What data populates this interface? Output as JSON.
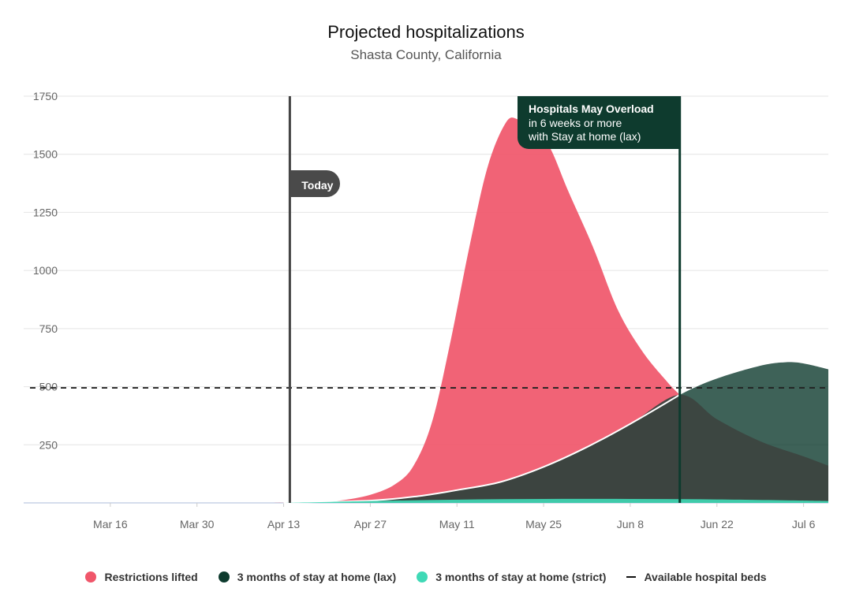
{
  "title": "Projected hospitalizations",
  "subtitle": "Shasta County, California",
  "chart_data": {
    "type": "area",
    "title": "Projected hospitalizations",
    "subtitle": "Shasta County, California",
    "xlabel": "",
    "ylabel": "",
    "x_tick_labels": [
      "Mar 16",
      "Mar 30",
      "Apr 13",
      "Apr 27",
      "May 11",
      "May 25",
      "Jun 8",
      "Jun 22",
      "Jul 6"
    ],
    "x_tick_dates": [
      "2020-03-16",
      "2020-03-30",
      "2020-04-13",
      "2020-04-27",
      "2020-05-11",
      "2020-05-25",
      "2020-06-08",
      "2020-06-22",
      "2020-07-06"
    ],
    "y_ticks": [
      250,
      500,
      750,
      1000,
      1250,
      1500,
      1750
    ],
    "ylim": [
      0,
      1750
    ],
    "xlim": [
      "2020-03-02",
      "2020-07-10"
    ],
    "grid": true,
    "legend_position": "bottom",
    "series": [
      {
        "name": "Restrictions lifted",
        "color": "#f0566a",
        "points": [
          [
            "2020-04-10",
            0
          ],
          [
            "2020-04-17",
            2
          ],
          [
            "2020-04-22",
            10
          ],
          [
            "2020-04-27",
            35
          ],
          [
            "2020-05-01",
            80
          ],
          [
            "2020-05-04",
            160
          ],
          [
            "2020-05-07",
            350
          ],
          [
            "2020-05-10",
            700
          ],
          [
            "2020-05-13",
            1100
          ],
          [
            "2020-05-16",
            1450
          ],
          [
            "2020-05-19",
            1640
          ],
          [
            "2020-05-21",
            1650
          ],
          [
            "2020-05-23",
            1640
          ],
          [
            "2020-05-26",
            1530
          ],
          [
            "2020-05-29",
            1340
          ],
          [
            "2020-06-02",
            1100
          ],
          [
            "2020-06-06",
            830
          ],
          [
            "2020-06-10",
            650
          ],
          [
            "2020-06-14",
            520
          ],
          [
            "2020-06-16",
            465
          ]
        ]
      },
      {
        "name": "3 months of stay at home (lax)",
        "color": "#0e3b2e",
        "points": [
          [
            "2020-04-13",
            0
          ],
          [
            "2020-04-27",
            10
          ],
          [
            "2020-05-05",
            30
          ],
          [
            "2020-05-11",
            55
          ],
          [
            "2020-05-18",
            90
          ],
          [
            "2020-05-25",
            155
          ],
          [
            "2020-06-01",
            240
          ],
          [
            "2020-06-08",
            340
          ],
          [
            "2020-06-16",
            465
          ],
          [
            "2020-06-22",
            535
          ],
          [
            "2020-06-29",
            590
          ],
          [
            "2020-07-03",
            605
          ],
          [
            "2020-07-06",
            600
          ],
          [
            "2020-07-10",
            575
          ]
        ]
      },
      {
        "name": "3 months of stay at home (strict)",
        "color": "#3fd9b6",
        "points": [
          [
            "2020-04-13",
            0
          ],
          [
            "2020-04-27",
            8
          ],
          [
            "2020-05-11",
            14
          ],
          [
            "2020-05-25",
            17
          ],
          [
            "2020-06-08",
            17
          ],
          [
            "2020-06-22",
            15
          ],
          [
            "2020-07-06",
            10
          ],
          [
            "2020-07-10",
            8
          ]
        ]
      }
    ],
    "restrictions_after_overload_tail": [
      [
        "2020-06-16",
        465
      ],
      [
        "2020-06-22",
        360
      ],
      [
        "2020-06-29",
        265
      ],
      [
        "2020-07-06",
        200
      ],
      [
        "2020-07-10",
        160
      ]
    ],
    "available_hospital_beds": {
      "name": "Available hospital beds",
      "value": 495
    },
    "annotations": [
      {
        "label": "Today",
        "date": "2020-04-14"
      },
      {
        "label": "Hospitals May Overload",
        "detail_lines": [
          "in 6 weeks or more",
          "with Stay at home (lax)"
        ],
        "date": "2020-06-16"
      }
    ]
  },
  "legend": [
    {
      "label": "Restrictions lifted",
      "color": "#f0566a",
      "style": "dot"
    },
    {
      "label": "3 months of stay at home (lax)",
      "color": "#0e3b2e",
      "style": "dot"
    },
    {
      "label": "3 months of stay at home (strict)",
      "color": "#3fd9b6",
      "style": "dot"
    },
    {
      "label": "Available hospital beds",
      "color": "#111111",
      "style": "dash"
    }
  ]
}
